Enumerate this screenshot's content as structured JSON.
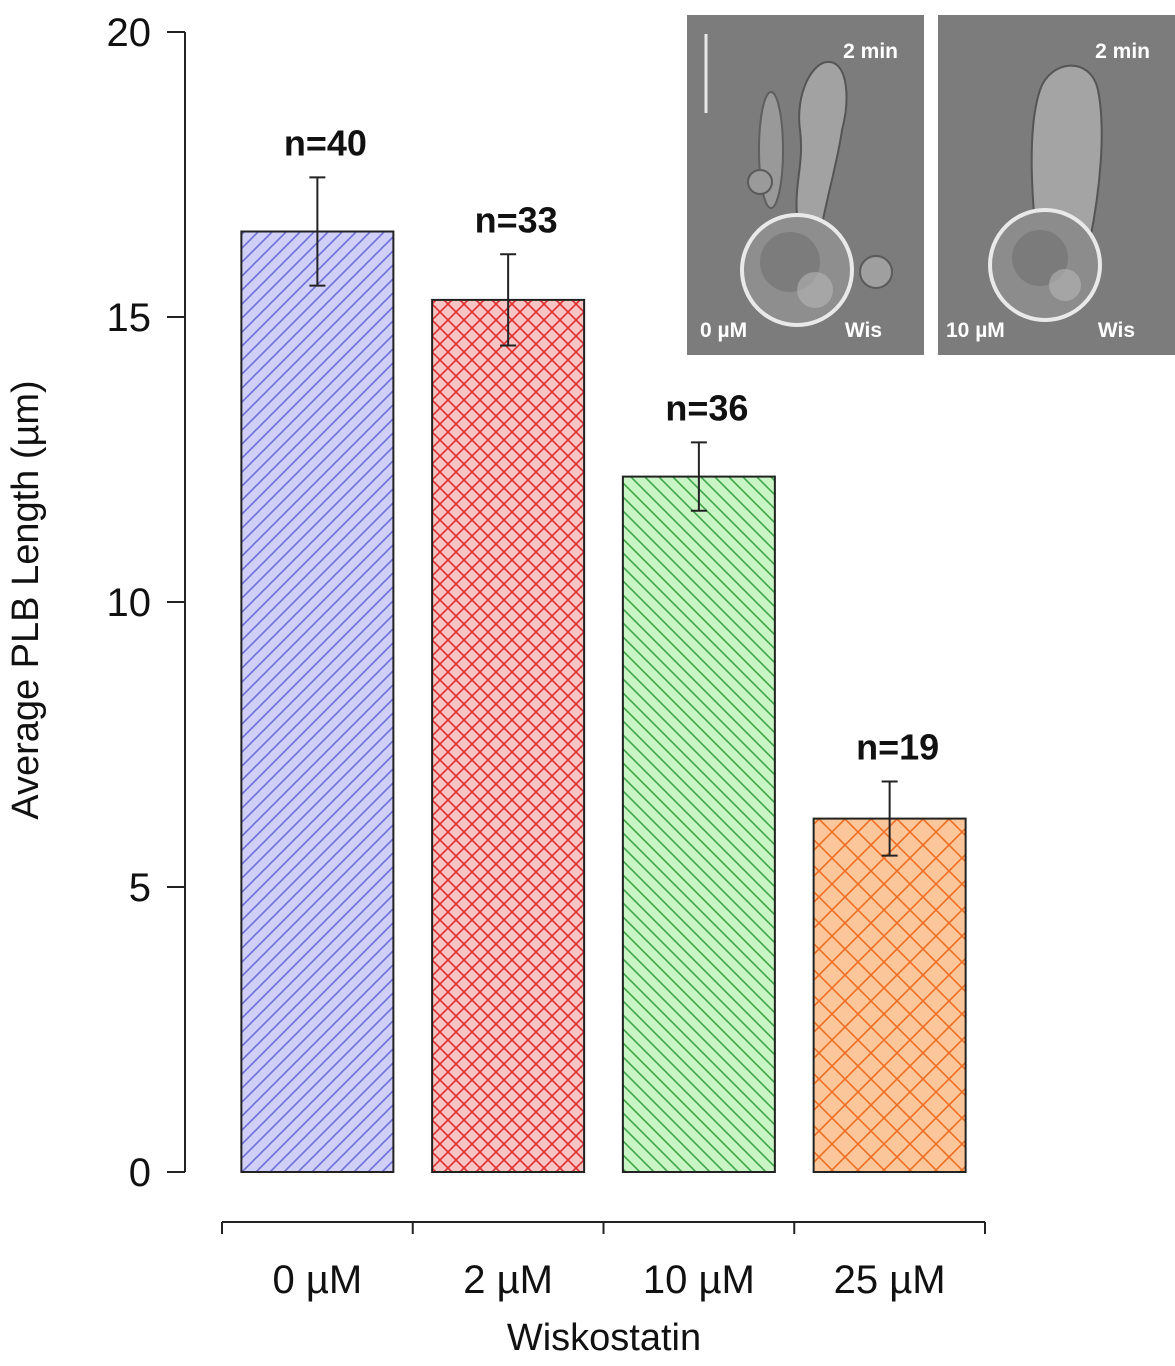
{
  "chart_data": {
    "type": "bar",
    "categories": [
      "0 µM",
      "2 µM",
      "10 µM",
      "25 µM"
    ],
    "values": [
      16.5,
      15.3,
      12.2,
      6.2
    ],
    "errors": [
      0.95,
      0.8,
      0.6,
      0.65
    ],
    "annotations": [
      "n=40",
      "n=33",
      "n=36",
      "n=19"
    ],
    "colors": [
      "#6f6fd8",
      "#e02b2b",
      "#3fa84a",
      "#ef6f24"
    ],
    "fills": [
      "#cfcff7",
      "#f8c4c4",
      "#c9f4c4",
      "#fbc79a"
    ],
    "patterns": [
      "diagonal-back",
      "crosshatch",
      "diagonal-forward",
      "brick"
    ],
    "xlabel": "Wiskostatin",
    "ylabel": "Average PLB Length (µm)",
    "ylim": [
      0,
      20
    ],
    "yticks": [
      0,
      5,
      10,
      15,
      20
    ],
    "grid": false,
    "legend": "none",
    "insets": [
      {
        "time": "2 min",
        "concentration": "0 µM",
        "drug": "Wis"
      },
      {
        "time": "2 min",
        "concentration": "10 µM",
        "drug": "Wis"
      }
    ]
  }
}
